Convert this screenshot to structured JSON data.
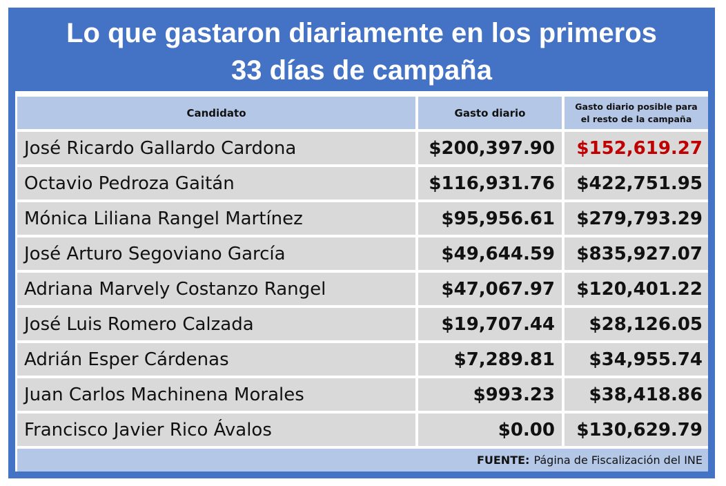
{
  "title": {
    "line1": "Lo que gastaron diariamente en los primeros",
    "line2": "33 días de campaña"
  },
  "table": {
    "headers": {
      "candidate": "Candidato",
      "daily": "Gasto diario",
      "possible_line1": "Gasto diario posible para",
      "possible_line2": "el resto de la campaña"
    },
    "rows": [
      {
        "name": "José Ricardo Gallardo Cardona",
        "daily": "$200,397.90",
        "possible": "$152,619.27"
      },
      {
        "name": "Octavio Pedroza Gaitán",
        "daily": "$116,931.76",
        "possible": "$422,751.95"
      },
      {
        "name": "Mónica Liliana Rangel Martínez",
        "daily": "$95,956.61",
        "possible": "$279,793.29"
      },
      {
        "name": "José Arturo Segoviano García",
        "daily": "$49,644.59",
        "possible": "$835,927.07"
      },
      {
        "name": "Adriana Marvely Costanzo Rangel",
        "daily": "$47,067.97",
        "possible": "$120,401.22"
      },
      {
        "name": "José Luis Romero Calzada",
        "daily": "$19,707.44",
        "possible": "$28,126.05"
      },
      {
        "name": "Adrián Esper Cárdenas",
        "daily": "$7,289.81",
        "possible": "$34,955.74"
      },
      {
        "name": "Juan Carlos Machinena Morales",
        "daily": "$993.23",
        "possible": "$38,418.86"
      },
      {
        "name": "Francisco Javier Rico Ávalos",
        "daily": "$0.00",
        "possible": "$130,629.79"
      }
    ]
  },
  "footer": {
    "label": "FUENTE:",
    "source": "Página de Fiscalización del INE"
  },
  "colors": {
    "frame": "#4472c4",
    "header_fill": "#b4c7e7",
    "row_fill": "#d9d9d9",
    "highlight": "#c00000"
  }
}
